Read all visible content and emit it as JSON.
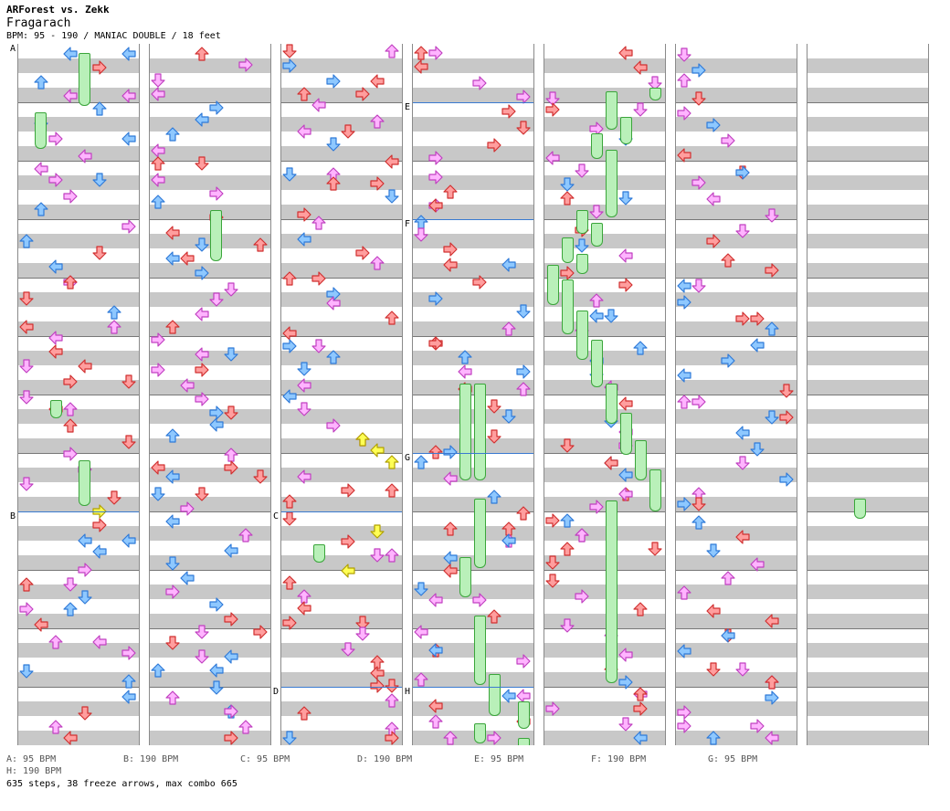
{
  "header": {
    "title": "ARForest vs. Zekk",
    "song": "Fragarach",
    "info": "BPM: 95 - 190 / MANIAC DOUBLE / 18 feet"
  },
  "sections": [
    "A",
    "B",
    "C",
    "D",
    "E",
    "F",
    "G",
    "H"
  ],
  "legend": [
    "A: 95 BPM",
    "B: 190 BPM",
    "C: 95 BPM",
    "D: 190 BPM",
    "E: 95 BPM",
    "F: 190 BPM",
    "G: 95 BPM",
    "H: 190 BPM"
  ],
  "stats": "635 steps, 38 freeze arrows, max combo 665",
  "colors": {
    "red": "#ff9e9e",
    "blue": "#8ec8ff",
    "pink": "#ffb4ff",
    "yellow": "#ffff55",
    "freeze": "#b9f0b9"
  },
  "icons": [
    "left-arrow-icon",
    "down-arrow-icon",
    "up-arrow-icon",
    "right-arrow-icon"
  ]
}
